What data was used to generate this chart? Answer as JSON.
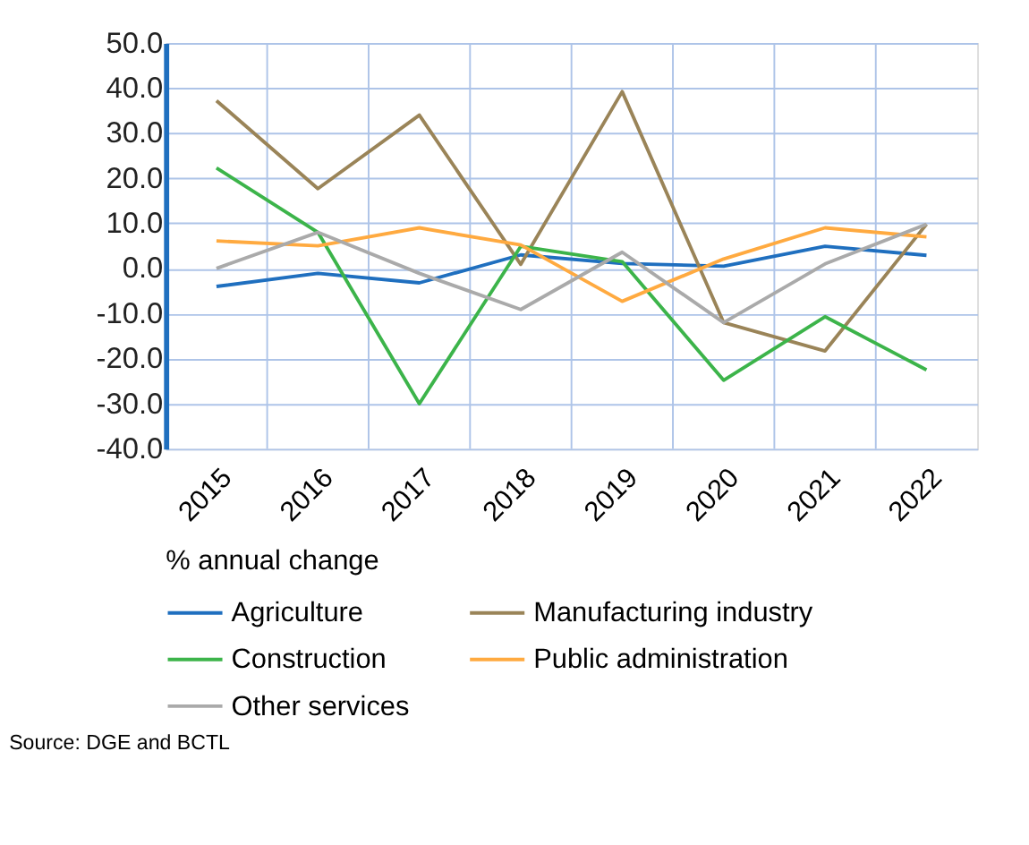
{
  "chart_data": {
    "type": "line",
    "legend_title": "% annual change",
    "categories": [
      "2015",
      "2016",
      "2017",
      "2018",
      "2019",
      "2020",
      "2021",
      "2022"
    ],
    "series": [
      {
        "name": "Agriculture",
        "color": "#1f6fbf",
        "values": [
          -4.0,
          -1.1,
          -3.2,
          3.0,
          1.1,
          0.5,
          4.9,
          2.9
        ]
      },
      {
        "name": "Manufacturing industry",
        "color": "#9a8458",
        "values": [
          37.2,
          17.7,
          34.0,
          0.9,
          39.2,
          -12.0,
          -18.3,
          9.8
        ]
      },
      {
        "name": "Construction",
        "color": "#3cb44a",
        "values": [
          22.3,
          8.0,
          -30.0,
          4.9,
          1.5,
          -24.8,
          -10.7,
          -22.5
        ]
      },
      {
        "name": "Public administration",
        "color": "#ffaa40",
        "values": [
          6.1,
          5.0,
          9.0,
          5.2,
          -7.3,
          2.1,
          9.0,
          7.0
        ]
      },
      {
        "name": "Other services",
        "color": "#aaaaaa",
        "values": [
          0.0,
          8.0,
          -1.1,
          -9.1,
          3.6,
          -12.0,
          1.0,
          9.8
        ]
      }
    ],
    "ylim": [
      -40,
      50
    ],
    "yticks": [
      {
        "value": -40,
        "label": "-40.0"
      },
      {
        "value": -30,
        "label": "-30.0"
      },
      {
        "value": -20,
        "label": "-20.0"
      },
      {
        "value": -10,
        "label": "-10.0"
      },
      {
        "value": 0,
        "label": "0.0"
      },
      {
        "value": 10,
        "label": "10.0"
      },
      {
        "value": 20,
        "label": "20.0"
      },
      {
        "value": 30,
        "label": "30.0"
      },
      {
        "value": 40,
        "label": "40.0"
      },
      {
        "value": 50,
        "label": "50.0"
      }
    ],
    "grid": true,
    "legend": "bottom",
    "marker": "none",
    "line_style": "solid",
    "annotations": [
      "Source: DGE and BCTL"
    ]
  }
}
